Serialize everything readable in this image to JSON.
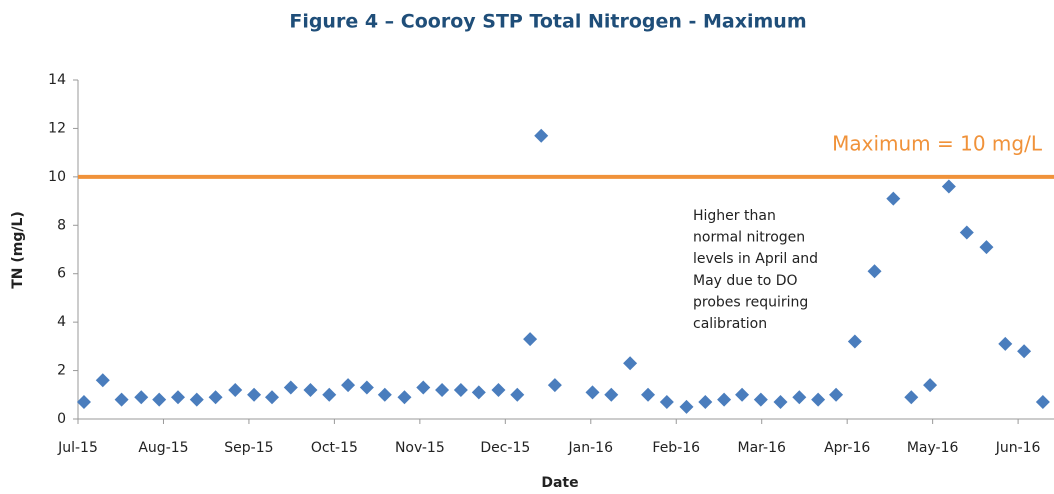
{
  "chart_data": {
    "type": "scatter",
    "title": "Figure 4 – Cooroy STP Total Nitrogen - Maximum",
    "x_label": "Date",
    "y_label": "TN (mg/L)",
    "series": [
      {
        "name": "TN",
        "color": "#4a7dbd",
        "x": [
          0.07,
          0.29,
          0.51,
          0.74,
          0.95,
          1.17,
          1.39,
          1.61,
          1.84,
          2.06,
          2.27,
          2.49,
          2.72,
          2.94,
          3.16,
          3.38,
          3.59,
          3.82,
          4.04,
          4.26,
          4.48,
          4.69,
          4.92,
          5.14,
          5.29,
          5.42,
          5.58,
          6.02,
          6.24,
          6.46,
          6.67,
          6.89,
          7.12,
          7.34,
          7.56,
          7.77,
          7.99,
          8.22,
          8.44,
          8.66,
          8.87,
          9.09,
          9.32,
          9.54,
          9.75,
          9.97,
          10.19,
          10.4,
          10.63,
          10.85,
          11.07,
          11.29
        ],
        "values": [
          0.7,
          1.6,
          0.8,
          0.9,
          0.8,
          0.9,
          0.8,
          0.9,
          1.2,
          1.0,
          0.9,
          1.3,
          1.2,
          1.0,
          1.4,
          1.3,
          1.0,
          0.9,
          1.3,
          1.2,
          1.2,
          1.1,
          1.2,
          1.0,
          3.3,
          11.7,
          1.4,
          1.1,
          1.0,
          2.3,
          1.0,
          0.7,
          0.5,
          0.7,
          0.8,
          1.0,
          0.8,
          0.7,
          0.9,
          0.8,
          1.0,
          3.2,
          6.1,
          9.1,
          0.9,
          1.4,
          9.6,
          7.7,
          7.1,
          3.1,
          2.8,
          0.7
        ]
      }
    ],
    "xlim": [
      0,
      11.42
    ],
    "xticks": [
      {
        "value": 0,
        "label": "Jul-15"
      },
      {
        "value": 1,
        "label": "Aug-15"
      },
      {
        "value": 2,
        "label": "Sep-15"
      },
      {
        "value": 3,
        "label": "Oct-15"
      },
      {
        "value": 4,
        "label": "Nov-15"
      },
      {
        "value": 5,
        "label": "Dec-15"
      },
      {
        "value": 6,
        "label": "Jan-16"
      },
      {
        "value": 7,
        "label": "Feb-16"
      },
      {
        "value": 8,
        "label": "Mar-16"
      },
      {
        "value": 9,
        "label": "Apr-16"
      },
      {
        "value": 10,
        "label": "May-16"
      },
      {
        "value": 11,
        "label": "Jun-16"
      }
    ],
    "ylim": [
      0,
      14
    ],
    "yticks": [
      0,
      2,
      4,
      6,
      8,
      10,
      12,
      14
    ],
    "grid": false,
    "threshold": {
      "value": 10,
      "label": "Maximum = 10 mg/L",
      "color": "#f0923a"
    },
    "annotation": [
      "Higher than",
      "normal nitrogen",
      "levels in April and",
      "May due to DO",
      "probes requiring",
      "calibration"
    ]
  }
}
